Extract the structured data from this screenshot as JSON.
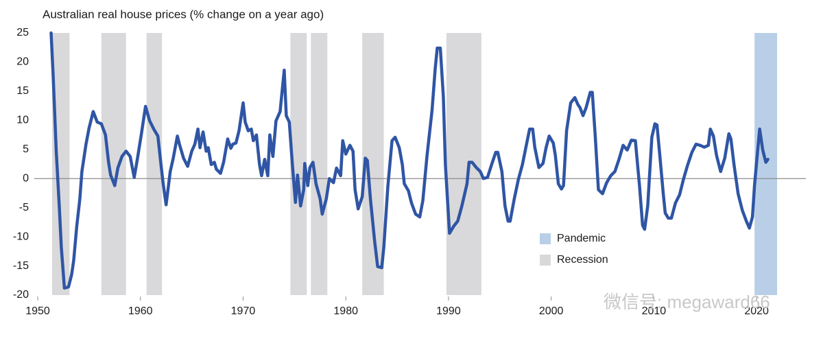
{
  "chart_data": {
    "type": "line",
    "title": "Australian real house prices (% change on a year ago)",
    "xlim": [
      1950,
      2024.8
    ],
    "xticks": [
      1950,
      1960,
      1970,
      1980,
      1990,
      2000,
      2010,
      2020
    ],
    "ylim": [
      -20,
      25
    ],
    "yticks": [
      -20,
      -15,
      -10,
      -5,
      0,
      5,
      10,
      15,
      20,
      25
    ],
    "color": "#2f55a4",
    "bands": [
      {
        "name": "Pandemic",
        "color": "#b9cfe8",
        "ranges": [
          [
            2019.8,
            2022.0
          ]
        ]
      },
      {
        "name": "Recession",
        "color": "#d9d9db",
        "ranges": [
          [
            1951.4,
            1953.1
          ],
          [
            1956.2,
            1958.6
          ],
          [
            1960.6,
            1962.1
          ],
          [
            1974.6,
            1976.2
          ],
          [
            1976.6,
            1978.2
          ],
          [
            1981.6,
            1983.7
          ],
          [
            1989.8,
            1993.2
          ]
        ]
      }
    ],
    "x": [
      1951.3,
      1951.5,
      1951.8,
      1952.1,
      1952.3,
      1952.6,
      1953.0,
      1953.3,
      1953.5,
      1953.8,
      1954.1,
      1954.3,
      1954.7,
      1955.0,
      1955.4,
      1955.8,
      1956.2,
      1956.6,
      1956.9,
      1957.1,
      1957.5,
      1957.8,
      1958.2,
      1958.6,
      1959.0,
      1959.4,
      1959.7,
      1960.1,
      1960.5,
      1960.9,
      1961.3,
      1961.7,
      1962.0,
      1962.2,
      1962.5,
      1962.9,
      1963.2,
      1963.6,
      1963.8,
      1964.2,
      1964.6,
      1965.0,
      1965.3,
      1965.6,
      1965.8,
      1966.1,
      1966.4,
      1966.6,
      1966.9,
      1967.2,
      1967.4,
      1967.8,
      1968.1,
      1968.5,
      1968.8,
      1969.0,
      1969.3,
      1969.6,
      1970.0,
      1970.2,
      1970.5,
      1970.8,
      1971.0,
      1971.3,
      1971.6,
      1971.8,
      1972.1,
      1972.4,
      1972.6,
      1972.9,
      1973.2,
      1973.6,
      1974.0,
      1974.2,
      1974.5,
      1974.8,
      1975.1,
      1975.3,
      1975.6,
      1975.9,
      1976.0,
      1976.3,
      1976.5,
      1976.8,
      1977.1,
      1977.5,
      1977.7,
      1978.1,
      1978.4,
      1978.8,
      1979.1,
      1979.5,
      1979.7,
      1980.0,
      1980.4,
      1980.7,
      1980.9,
      1981.2,
      1981.6,
      1981.9,
      1982.1,
      1982.4,
      1982.8,
      1983.1,
      1983.5,
      1983.7,
      1984.1,
      1984.5,
      1984.8,
      1985.2,
      1985.5,
      1985.7,
      1986.1,
      1986.4,
      1986.8,
      1987.2,
      1987.5,
      1987.9,
      1988.4,
      1988.7,
      1988.9,
      1989.2,
      1989.5,
      1989.7,
      1990.1,
      1990.5,
      1990.9,
      1991.3,
      1991.8,
      1992.0,
      1992.3,
      1992.7,
      1993.1,
      1993.4,
      1993.8,
      1994.2,
      1994.6,
      1994.8,
      1995.2,
      1995.5,
      1995.8,
      1996.0,
      1996.4,
      1996.8,
      1997.2,
      1997.6,
      1997.9,
      1998.2,
      1998.4,
      1998.8,
      1999.2,
      1999.5,
      1999.8,
      2000.2,
      2000.4,
      2000.7,
      2001.0,
      2001.2,
      2001.5,
      2001.9,
      2002.3,
      2002.6,
      2002.8,
      2003.1,
      2003.4,
      2003.8,
      2004.0,
      2004.3,
      2004.6,
      2005.0,
      2005.4,
      2005.8,
      2006.2,
      2006.6,
      2007.0,
      2007.4,
      2007.8,
      2008.2,
      2008.6,
      2008.9,
      2009.1,
      2009.4,
      2009.8,
      2010.1,
      2010.3,
      2010.6,
      2010.9,
      2011.1,
      2011.4,
      2011.7,
      2012.1,
      2012.5,
      2012.9,
      2013.3,
      2013.7,
      2014.1,
      2014.5,
      2014.9,
      2015.3,
      2015.5,
      2015.8,
      2016.1,
      2016.5,
      2016.9,
      2017.3,
      2017.5,
      2017.8,
      2018.2,
      2018.6,
      2019.0,
      2019.3,
      2019.6,
      2019.8,
      2020.1,
      2020.3,
      2020.6,
      2020.9,
      2021.1
    ],
    "values": [
      25,
      17.7,
      4.7,
      -4.7,
      -11.8,
      -18.8,
      -18.6,
      -16.5,
      -14.1,
      -8.2,
      -3.5,
      1.2,
      5.9,
      8.7,
      11.5,
      9.7,
      9.4,
      7.5,
      2.8,
      0.6,
      -1.2,
      1.8,
      3.8,
      4.7,
      3.8,
      0.2,
      3.3,
      7.7,
      12.4,
      9.9,
      8.5,
      7.3,
      2.4,
      -0.7,
      -4.5,
      1.2,
      3.5,
      7.3,
      5.9,
      3.5,
      2.1,
      4.7,
      5.9,
      8.5,
      5.3,
      8.0,
      4.7,
      5.3,
      2.4,
      2.8,
      1.6,
      0.9,
      2.8,
      6.8,
      5.2,
      5.9,
      6.1,
      8.2,
      13.0,
      9.7,
      8.2,
      8.5,
      6.5,
      7.5,
      2.4,
      0.5,
      3.3,
      0.5,
      7.5,
      3.8,
      9.9,
      11.5,
      18.6,
      10.8,
      9.7,
      2.4,
      -4.1,
      0.6,
      -4.7,
      -1.9,
      2.6,
      -1.2,
      1.9,
      2.8,
      -0.9,
      -3.5,
      -6.1,
      -3.5,
      0,
      -0.7,
      1.8,
      0.5,
      6.5,
      4.2,
      5.7,
      4.7,
      -1.9,
      -5.2,
      -3.1,
      3.5,
      3.1,
      -3.5,
      -10.6,
      -15.1,
      -15.3,
      -11.8,
      -1.2,
      6.5,
      7.1,
      5.3,
      2.4,
      -0.9,
      -2.1,
      -4.2,
      -6.1,
      -6.6,
      -3.8,
      3.8,
      11.8,
      18.8,
      22.4,
      22.4,
      14.1,
      2.4,
      -9.4,
      -8.2,
      -7.3,
      -4.7,
      -0.9,
      2.8,
      2.8,
      1.9,
      1.2,
      0,
      0.2,
      2.4,
      4.5,
      4.5,
      1.2,
      -4.7,
      -7.3,
      -7.3,
      -3.5,
      -0.2,
      2.4,
      5.9,
      8.5,
      8.5,
      5.4,
      1.9,
      2.6,
      5.3,
      7.3,
      6.1,
      4.0,
      -0.9,
      -1.8,
      -1.2,
      8.2,
      13.0,
      13.9,
      12.7,
      12.2,
      10.8,
      12.2,
      14.8,
      14.8,
      7.1,
      -1.9,
      -2.6,
      -0.7,
      0.5,
      1.2,
      3.3,
      5.7,
      4.9,
      6.6,
      6.5,
      -1.2,
      -8.0,
      -8.7,
      -4.7,
      7.1,
      9.4,
      9.2,
      3.5,
      -2.4,
      -5.9,
      -6.8,
      -6.8,
      -4.2,
      -2.8,
      0,
      2.4,
      4.5,
      5.9,
      5.7,
      5.4,
      5.7,
      8.5,
      7.3,
      4.0,
      1.2,
      3.5,
      7.7,
      6.8,
      2.4,
      -2.6,
      -5.4,
      -7.3,
      -8.5,
      -6.6,
      -1.2,
      4.7,
      8.5,
      4.9,
      2.8,
      3.3
    ],
    "watermark": "微信号: megaward66"
  }
}
